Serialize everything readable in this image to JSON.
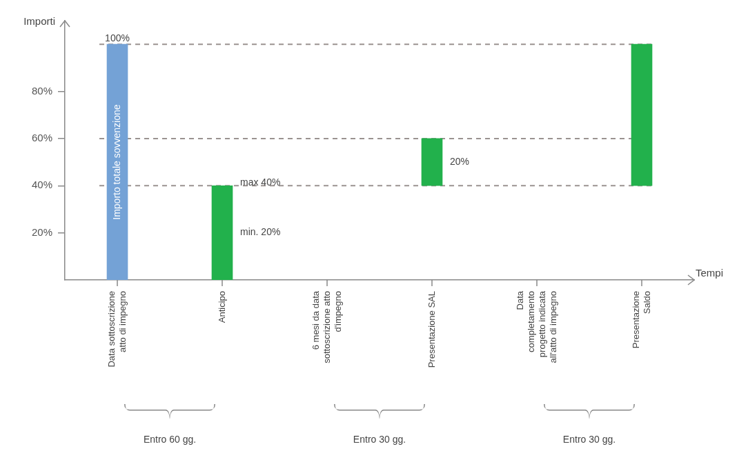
{
  "chart_data": {
    "type": "bar",
    "categories": [
      "Data sottoscrizione atto di impegno",
      "Anticipo",
      "6 mesi da data sottoscrizione atto d'impegno",
      "Presentazione SAL",
      "Data completamento progetto indicata all'atto di impegno",
      "Presentazione Saldo"
    ],
    "values": [
      100,
      40,
      null,
      20,
      null,
      60
    ],
    "base": [
      0,
      0,
      null,
      40,
      null,
      40
    ],
    "colors": [
      "#74a2d6",
      "#22b14c",
      null,
      "#22b14c",
      null,
      "#22b14c"
    ],
    "ylim": [
      0,
      110
    ],
    "yticks": [
      {
        "value": 20,
        "label": "20%"
      },
      {
        "value": 40,
        "label": "40%"
      },
      {
        "value": 60,
        "label": "60%"
      },
      {
        "value": 80,
        "label": "80%"
      }
    ],
    "xlabel": "Tempi",
    "ylabel": "Importi",
    "ref_lines": [
      {
        "axis": "y",
        "value": 100,
        "color": "#9a9290",
        "line_style": "dashed"
      },
      {
        "axis": "y",
        "value": 60,
        "color": "#9a9290",
        "line_style": "dashed"
      },
      {
        "axis": "y",
        "value": 40,
        "color": "#9a9290",
        "line_style": "dashed"
      }
    ],
    "annotations": [
      {
        "text": "100%",
        "x": "Data sottoscrizione atto di impegno",
        "y": 100
      },
      {
        "text": "max 40%",
        "x": "Anticipo",
        "y": 40
      },
      "min. 20%",
      "20%",
      "Importo totale sovvenzione",
      "Entro 60 gg.",
      "Entro 30 gg.",
      "Entro 30 gg."
    ],
    "grid": false,
    "legend": false
  }
}
